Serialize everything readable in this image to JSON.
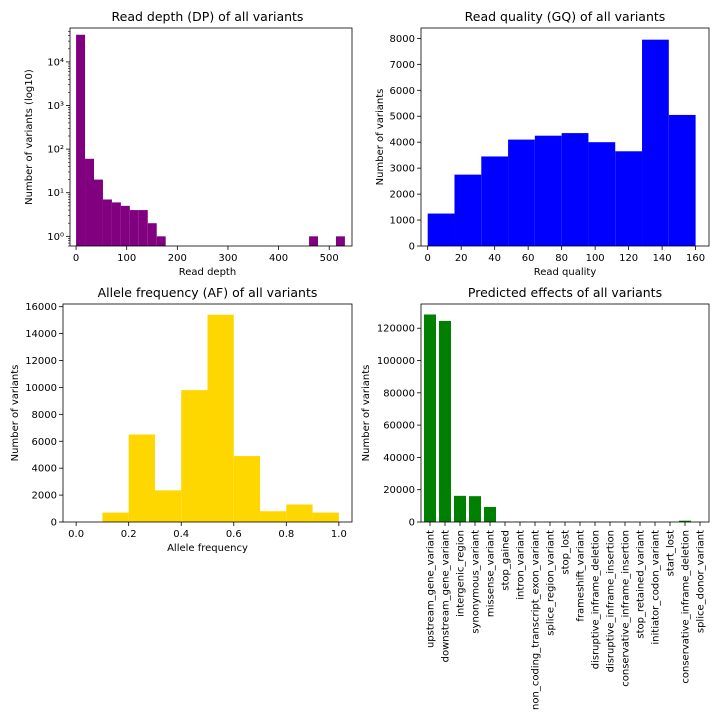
{
  "chart_data": [
    {
      "type": "bar",
      "title": "Read depth (DP) of all variants",
      "xlabel": "Read depth",
      "ylabel": "Number of variants (log10)",
      "yscale": "log",
      "color": "#800080",
      "xlim": [
        -12,
        545
      ],
      "ylim": [
        0.6,
        60000
      ],
      "xticks": [
        0,
        100,
        200,
        300,
        400,
        500
      ],
      "yticks": [
        {
          "value": 1,
          "label": "10⁰"
        },
        {
          "value": 10,
          "label": "10¹"
        },
        {
          "value": 100,
          "label": "10²"
        },
        {
          "value": 1000,
          "label": "10³"
        },
        {
          "value": 10000,
          "label": "10⁴"
        }
      ],
      "bin_width": 17.7,
      "bins": [
        {
          "x": 0,
          "value": 42000
        },
        {
          "x": 17.7,
          "value": 60
        },
        {
          "x": 35.4,
          "value": 20
        },
        {
          "x": 53.1,
          "value": 7
        },
        {
          "x": 70.8,
          "value": 6
        },
        {
          "x": 88.5,
          "value": 5
        },
        {
          "x": 106.2,
          "value": 4
        },
        {
          "x": 123.9,
          "value": 4
        },
        {
          "x": 141.6,
          "value": 2
        },
        {
          "x": 159.3,
          "value": 1
        },
        {
          "x": 460.2,
          "value": 1
        },
        {
          "x": 513.3,
          "value": 1
        }
      ]
    },
    {
      "type": "bar",
      "title": "Read quality (GQ) of all variants",
      "xlabel": "Read quality",
      "ylabel": "Number of variants",
      "color": "#0000ff",
      "xlim": [
        -4,
        168
      ],
      "ylim": [
        0,
        8400
      ],
      "xticks": [
        0,
        20,
        40,
        60,
        80,
        100,
        120,
        140,
        160
      ],
      "yticks": [
        0,
        1000,
        2000,
        3000,
        4000,
        5000,
        6000,
        7000,
        8000
      ],
      "bin_width": 16,
      "bins": [
        {
          "x": 0,
          "value": 1250
        },
        {
          "x": 16,
          "value": 2750
        },
        {
          "x": 32,
          "value": 3450
        },
        {
          "x": 48,
          "value": 4100
        },
        {
          "x": 64,
          "value": 4250
        },
        {
          "x": 80,
          "value": 4350
        },
        {
          "x": 96,
          "value": 4000
        },
        {
          "x": 112,
          "value": 3650
        },
        {
          "x": 128,
          "value": 7950
        },
        {
          "x": 144,
          "value": 5050
        }
      ]
    },
    {
      "type": "bar",
      "title": "Allele frequency (AF) of all variants",
      "xlabel": "Allele frequency",
      "ylabel": "Number of variants",
      "color": "#ffd700",
      "xlim": [
        -0.05,
        1.05
      ],
      "ylim": [
        0,
        16200
      ],
      "xticks": [
        0.0,
        0.2,
        0.4,
        0.6,
        0.8,
        1.0
      ],
      "xtick_labels": [
        "0.0",
        "0.2",
        "0.4",
        "0.6",
        "0.8",
        "1.0"
      ],
      "yticks": [
        0,
        2000,
        4000,
        6000,
        8000,
        10000,
        12000,
        14000,
        16000
      ],
      "bin_width": 0.1,
      "bins": [
        {
          "x": 0.0,
          "value": 0
        },
        {
          "x": 0.1,
          "value": 700
        },
        {
          "x": 0.2,
          "value": 6500
        },
        {
          "x": 0.3,
          "value": 2350
        },
        {
          "x": 0.4,
          "value": 9800
        },
        {
          "x": 0.5,
          "value": 15400
        },
        {
          "x": 0.6,
          "value": 4900
        },
        {
          "x": 0.7,
          "value": 800
        },
        {
          "x": 0.8,
          "value": 1300
        },
        {
          "x": 0.9,
          "value": 700
        }
      ]
    },
    {
      "type": "bar",
      "title": "Predicted effects of all variants",
      "xlabel": "",
      "ylabel": "Number of variants",
      "color": "#008000",
      "ylim": [
        0,
        135000
      ],
      "yticks": [
        0,
        20000,
        40000,
        60000,
        80000,
        100000,
        120000
      ],
      "categories": [
        "upstream_gene_variant",
        "downstream_gene_variant",
        "intergenic_region",
        "synonymous_variant",
        "missense_variant",
        "stop_gained",
        "intron_variant",
        "non_coding_transcript_exon_variant",
        "splice_region_variant",
        "stop_lost",
        "frameshift_variant",
        "disruptive_inframe_deletion",
        "disruptive_inframe_insertion",
        "conservative_inframe_insertion",
        "stop_retained_variant",
        "initiator_codon_variant",
        "start_lost",
        "conservative_inframe_deletion",
        "splice_donor_variant"
      ],
      "values": [
        128500,
        124500,
        16200,
        16000,
        9300,
        200,
        150,
        120,
        150,
        100,
        100,
        80,
        60,
        50,
        40,
        30,
        30,
        800,
        30
      ]
    }
  ]
}
